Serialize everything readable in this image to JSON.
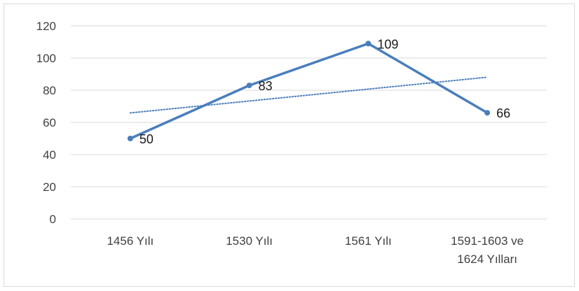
{
  "chart_data": {
    "type": "line",
    "title": "",
    "xlabel": "",
    "ylabel": "",
    "categories": [
      "1456 Yılı",
      "1530 Yılı",
      "1561 Yılı",
      "1591-1603 ve 1624 Yılları"
    ],
    "category_lines": [
      [
        "1456 Yılı"
      ],
      [
        "1530 Yılı"
      ],
      [
        "1561 Yılı"
      ],
      [
        "1591-1603 ve",
        "1624 Yılları"
      ]
    ],
    "series": [
      {
        "values": [
          50,
          83,
          109,
          66
        ],
        "color": "#4a7ebb",
        "data_labels": [
          "50",
          "83",
          "109",
          "66"
        ]
      }
    ],
    "trendline": {
      "type": "linear",
      "style": "dotted",
      "color": "#4a7ebb"
    },
    "ylim": [
      0,
      120
    ],
    "yticks": [
      0,
      20,
      40,
      60,
      80,
      100,
      120
    ],
    "ytick_labels": [
      "0",
      "20",
      "40",
      "60",
      "80",
      "100",
      "120"
    ],
    "grid": true,
    "gridline_color": "#d9d9d9",
    "legend": "none"
  }
}
